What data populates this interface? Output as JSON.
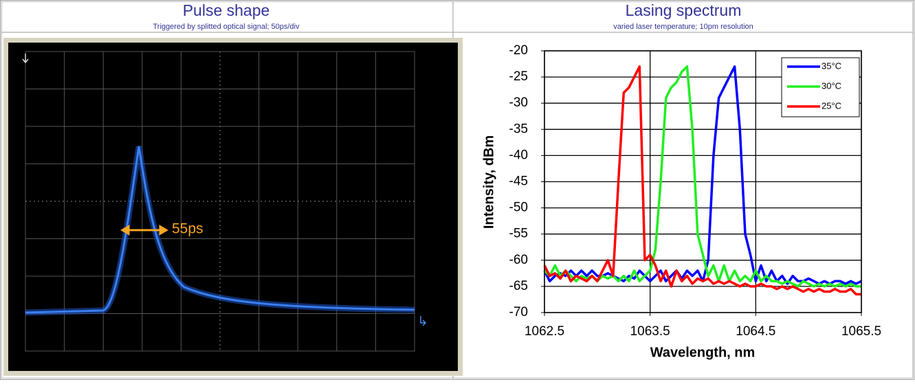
{
  "panels": [
    {
      "title": "Pulse shape",
      "subtitle": "Triggered by splitted optical signal; 50ps/div"
    },
    {
      "title": "Lasing spectrum",
      "subtitle": "varied laser temperature; 10pm resolution"
    }
  ],
  "oscilloscope": {
    "annotation": "55ps"
  },
  "chart_data": {
    "type": "line",
    "x_label": "Wavelength, nm",
    "y_label": "Intensity, dBm",
    "x": [
      1062.5,
      1062.55,
      1062.6,
      1062.65,
      1062.7,
      1062.75,
      1062.8,
      1062.85,
      1062.9,
      1062.95,
      1063,
      1063.05,
      1063.1,
      1063.15,
      1063.2,
      1063.25,
      1063.3,
      1063.35,
      1063.4,
      1063.45,
      1063.5,
      1063.55,
      1063.6,
      1063.65,
      1063.7,
      1063.75,
      1063.8,
      1063.85,
      1063.9,
      1063.95,
      1064,
      1064.05,
      1064.1,
      1064.15,
      1064.2,
      1064.25,
      1064.3,
      1064.35,
      1064.4,
      1064.45,
      1064.5,
      1064.55,
      1064.6,
      1064.65,
      1064.7,
      1064.75,
      1064.8,
      1064.85,
      1064.9,
      1064.95,
      1065,
      1065.05,
      1065.1,
      1065.15,
      1065.2,
      1065.25,
      1065.3,
      1065.35,
      1065.4,
      1065.45,
      1065.5
    ],
    "series": [
      {
        "name": "35°C",
        "color": "#0000ff",
        "values": [
          -62,
          -64,
          -63,
          -62.5,
          -63,
          -62,
          -63,
          -62,
          -63,
          -62,
          -63,
          -63,
          -62.5,
          -63,
          -63.5,
          -64,
          -63,
          -63.5,
          -62,
          -63,
          -64,
          -63,
          -62,
          -64,
          -63,
          -62,
          -63.5,
          -62,
          -63,
          -62,
          -64,
          -60,
          -40,
          -29,
          -27,
          -25,
          -23,
          -35,
          -55,
          -59,
          -64,
          -61,
          -64,
          -62,
          -64,
          -63,
          -64.5,
          -63,
          -64,
          -64,
          -63.5,
          -64,
          -64.5,
          -64,
          -64.5,
          -64,
          -64,
          -64.5,
          -64,
          -64.5,
          -64
        ]
      },
      {
        "name": "30°C",
        "color": "#22ee22",
        "values": [
          -62,
          -63,
          -61,
          -63,
          -62,
          -63,
          -64,
          -63,
          -63.5,
          -63,
          -64,
          -63,
          -63.5,
          -63,
          -64,
          -63,
          -64,
          -62,
          -64,
          -63,
          -62,
          -58,
          -45,
          -29,
          -27,
          -26,
          -24,
          -23,
          -35,
          -55,
          -59,
          -63,
          -61,
          -64,
          -61,
          -64,
          -62,
          -64,
          -63,
          -64,
          -62,
          -64,
          -63,
          -64,
          -64,
          -64.5,
          -64,
          -64.5,
          -65,
          -64,
          -64.5,
          -65,
          -64.5,
          -65,
          -64.5,
          -65,
          -64.5,
          -65,
          -64.5,
          -65,
          -65
        ]
      },
      {
        "name": "25°C",
        "color": "#ff0000",
        "values": [
          -61,
          -63,
          -62.5,
          -63.5,
          -62,
          -64,
          -63,
          -63.5,
          -64,
          -63,
          -64,
          -62,
          -60,
          -63,
          -45,
          -28,
          -27,
          -25,
          -23,
          -60,
          -59,
          -61,
          -64,
          -62,
          -65,
          -62,
          -64,
          -63,
          -64.5,
          -63.5,
          -64,
          -63.5,
          -64.5,
          -64,
          -64.5,
          -64,
          -64.5,
          -65,
          -64.5,
          -65,
          -65,
          -64.5,
          -65,
          -65,
          -65.5,
          -65,
          -65.5,
          -65,
          -65.5,
          -66,
          -65.5,
          -66,
          -65.5,
          -66,
          -66,
          -65.5,
          -66,
          -66,
          -65.5,
          -66.5,
          -66.5
        ]
      }
    ],
    "xlim": [
      1062.5,
      1065.5
    ],
    "xticks": [
      1062.5,
      1063.5,
      1064.5,
      1065.5
    ],
    "ylim": [
      -70,
      -20
    ],
    "yticks": [
      -70,
      -65,
      -60,
      -55,
      -50,
      -45,
      -40,
      -35,
      -30,
      -25,
      -20
    ],
    "grid": true,
    "legend": "upper right"
  }
}
